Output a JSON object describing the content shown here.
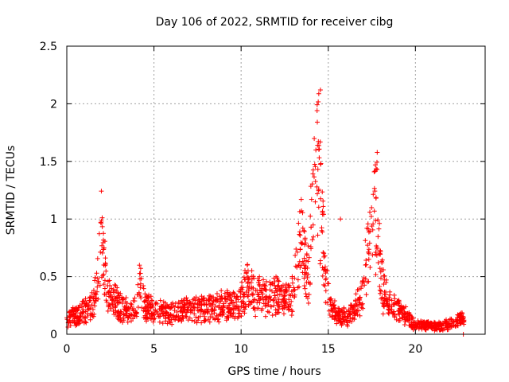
{
  "chart_data": {
    "type": "scatter",
    "title": "Day 106 of 2022, SRMTID for receiver cibg",
    "xlabel": "GPS time / hours",
    "ylabel": "SRMTID / TECUs",
    "xlim": [
      0,
      24
    ],
    "ylim": [
      0,
      2.5
    ],
    "grid": true,
    "marker": "+",
    "colors": {
      "points": "#ff0000",
      "grid": "#a0a0a0",
      "frame": "#000000"
    },
    "x_ticks": [
      {
        "value": 0,
        "label": "0"
      },
      {
        "value": 5,
        "label": "5"
      },
      {
        "value": 10,
        "label": "10"
      },
      {
        "value": 15,
        "label": "15"
      },
      {
        "value": 20,
        "label": "20"
      }
    ],
    "y_ticks": [
      {
        "value": 0,
        "label": "0"
      },
      {
        "value": 0.5,
        "label": "0.5"
      },
      {
        "value": 1,
        "label": "1"
      },
      {
        "value": 1.5,
        "label": "1.5"
      },
      {
        "value": 2,
        "label": "2"
      },
      {
        "value": 2.5,
        "label": "2.5"
      }
    ],
    "profile": {
      "description": "estimated central tendency of the point cloud (hour, SRMTID)",
      "points": [
        [
          0.0,
          0.13
        ],
        [
          0.5,
          0.16
        ],
        [
          1.0,
          0.2
        ],
        [
          1.5,
          0.25
        ],
        [
          1.8,
          0.5
        ],
        [
          1.95,
          0.88
        ],
        [
          2.1,
          0.6
        ],
        [
          2.4,
          0.32
        ],
        [
          3.0,
          0.25
        ],
        [
          3.5,
          0.2
        ],
        [
          4.0,
          0.24
        ],
        [
          4.2,
          0.45
        ],
        [
          4.5,
          0.25
        ],
        [
          5.0,
          0.2
        ],
        [
          6.0,
          0.18
        ],
        [
          7.0,
          0.22
        ],
        [
          8.0,
          0.22
        ],
        [
          9.0,
          0.25
        ],
        [
          9.8,
          0.24
        ],
        [
          10.4,
          0.42
        ],
        [
          11.0,
          0.35
        ],
        [
          11.5,
          0.3
        ],
        [
          12.0,
          0.35
        ],
        [
          12.5,
          0.28
        ],
        [
          13.0,
          0.35
        ],
        [
          13.3,
          0.7
        ],
        [
          13.5,
          0.85
        ],
        [
          13.8,
          0.45
        ],
        [
          14.2,
          1.2
        ],
        [
          14.4,
          1.85
        ],
        [
          14.6,
          1.0
        ],
        [
          14.9,
          0.4
        ],
        [
          15.2,
          0.25
        ],
        [
          15.6,
          0.15
        ],
        [
          16.0,
          0.15
        ],
        [
          16.5,
          0.2
        ],
        [
          17.0,
          0.35
        ],
        [
          17.3,
          0.8
        ],
        [
          17.5,
          0.95
        ],
        [
          17.8,
          1.2
        ],
        [
          18.0,
          0.45
        ],
        [
          18.5,
          0.25
        ],
        [
          19.0,
          0.2
        ],
        [
          19.5,
          0.15
        ],
        [
          20.0,
          0.08
        ],
        [
          20.5,
          0.08
        ],
        [
          21.0,
          0.07
        ],
        [
          21.5,
          0.07
        ],
        [
          22.0,
          0.1
        ],
        [
          22.5,
          0.12
        ],
        [
          22.8,
          0.16
        ]
      ]
    },
    "peaks": [
      {
        "x": 1.95,
        "y": 0.97
      },
      {
        "x": 4.2,
        "y": 0.48
      },
      {
        "x": 10.4,
        "y": 0.55
      },
      {
        "x": 13.45,
        "y": 1.17
      },
      {
        "x": 14.55,
        "y": 2.12
      },
      {
        "x": 15.7,
        "y": 1.0
      },
      {
        "x": 17.8,
        "y": 1.43
      },
      {
        "x": 22.75,
        "y": 0.0
      }
    ]
  }
}
